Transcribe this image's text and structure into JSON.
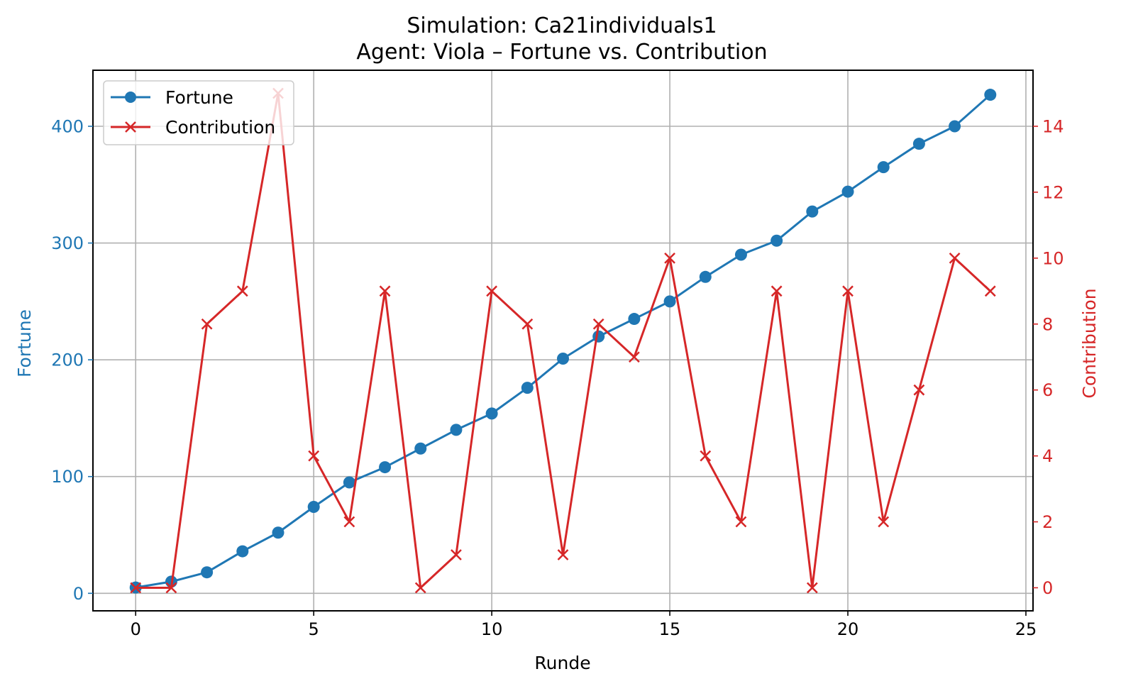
{
  "chart_data": {
    "type": "line",
    "title": "Simulation: Ca21individuals1",
    "subtitle": "Agent: Viola – Fortune vs. Contribution",
    "xlabel": "Runde",
    "ylabel_left": "Fortune",
    "ylabel_right": "Contribution",
    "xlim": [
      -1.2,
      25.2
    ],
    "ylim_left": [
      -15,
      448
    ],
    "ylim_right": [
      -0.7,
      15.7
    ],
    "x_ticks": [
      0,
      5,
      10,
      15,
      20,
      25
    ],
    "y_ticks_left": [
      0,
      100,
      200,
      300,
      400
    ],
    "y_ticks_right": [
      0,
      2,
      4,
      6,
      8,
      10,
      12,
      14
    ],
    "grid": true,
    "legend_position": "top-left",
    "x": [
      0,
      1,
      2,
      3,
      4,
      5,
      6,
      7,
      8,
      9,
      10,
      11,
      12,
      13,
      14,
      15,
      16,
      17,
      18,
      19,
      20,
      21,
      22,
      23,
      24
    ],
    "series": [
      {
        "name": "Fortune",
        "axis": "left",
        "marker": "circle",
        "color": "#1f77b4",
        "values": [
          5,
          10,
          18,
          36,
          52,
          74,
          95,
          108,
          124,
          140,
          154,
          176,
          201,
          220,
          235,
          250,
          271,
          290,
          302,
          327,
          344,
          365,
          385,
          400,
          427
        ]
      },
      {
        "name": "Contribution",
        "axis": "right",
        "marker": "x",
        "color": "#d62728",
        "values": [
          0,
          0,
          8,
          9,
          15,
          4,
          2,
          9,
          0,
          1,
          9,
          8,
          1,
          8,
          7,
          10,
          4,
          2,
          9,
          0,
          9,
          2,
          6,
          10,
          9
        ]
      }
    ]
  }
}
